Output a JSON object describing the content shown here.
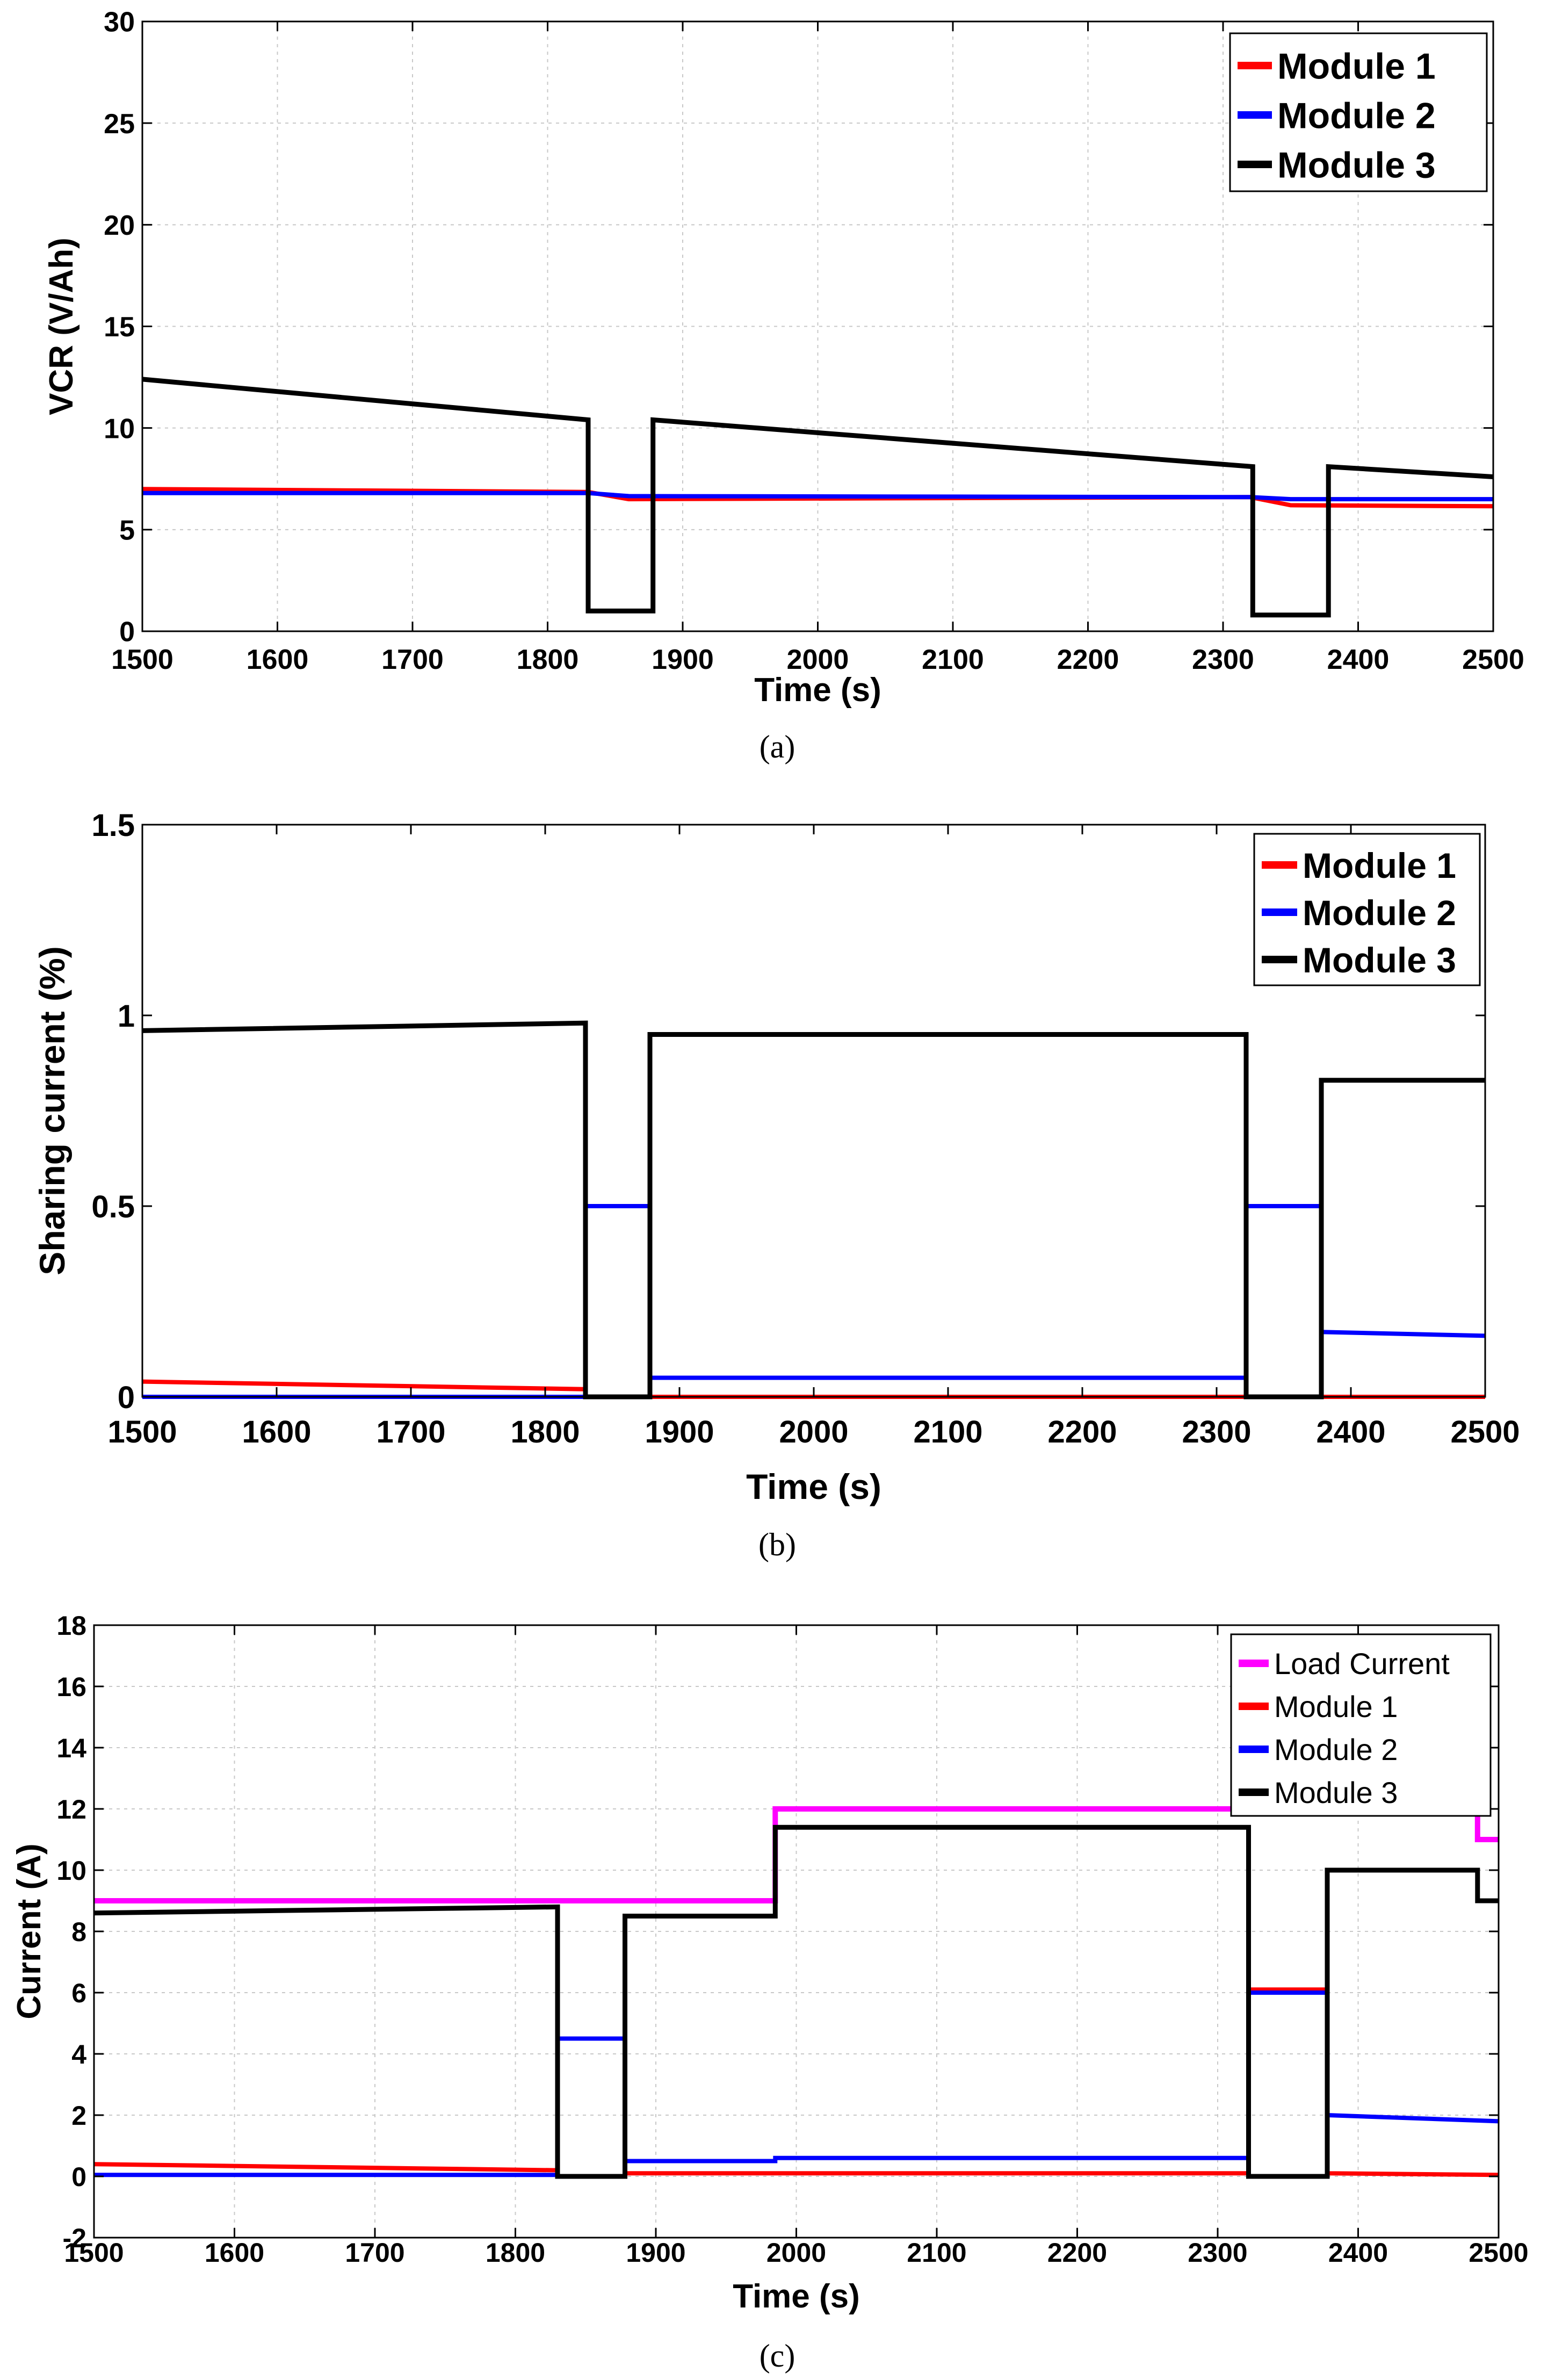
{
  "chart_data": [
    {
      "id": "a",
      "type": "line",
      "caption": "(a)",
      "xlabel": "Time (s)",
      "ylabel": "VCR (V/Ah)",
      "xlim": [
        1500,
        2500
      ],
      "ylim": [
        0,
        30
      ],
      "xticks": [
        1500,
        1600,
        1700,
        1800,
        1900,
        2000,
        2100,
        2200,
        2300,
        2400,
        2500
      ],
      "yticks": [
        0,
        5,
        10,
        15,
        20,
        25,
        30
      ],
      "grid": true,
      "legend_position": "top-right",
      "series": [
        {
          "name": "Module 1",
          "color": "#ff0000",
          "points": [
            [
              1500,
              7.0
            ],
            [
              1830,
              6.85
            ],
            [
              1860,
              6.5
            ],
            [
              2320,
              6.6
            ],
            [
              2350,
              6.2
            ],
            [
              2500,
              6.15
            ]
          ]
        },
        {
          "name": "Module 2",
          "color": "#0000ff",
          "points": [
            [
              1500,
              6.8
            ],
            [
              1830,
              6.8
            ],
            [
              1860,
              6.65
            ],
            [
              2320,
              6.6
            ],
            [
              2350,
              6.5
            ],
            [
              2500,
              6.5
            ]
          ]
        },
        {
          "name": "Module 3",
          "color": "#000000",
          "points": [
            [
              1500,
              12.4
            ],
            [
              1830,
              10.4
            ],
            [
              1830,
              1.0
            ],
            [
              1878,
              1.0
            ],
            [
              1878,
              10.4
            ],
            [
              2322,
              8.1
            ],
            [
              2322,
              0.8
            ],
            [
              2378,
              0.8
            ],
            [
              2378,
              8.1
            ],
            [
              2500,
              7.6
            ]
          ]
        }
      ]
    },
    {
      "id": "b",
      "type": "line",
      "caption": "(b)",
      "xlabel": "Time (s)",
      "ylabel": "Sharing current (%)",
      "xlim": [
        1500,
        2500
      ],
      "ylim": [
        0,
        1.5
      ],
      "xticks": [
        1500,
        1600,
        1700,
        1800,
        1900,
        2000,
        2100,
        2200,
        2300,
        2400,
        2500
      ],
      "yticks": [
        0,
        0.5,
        1,
        1.5
      ],
      "grid": false,
      "legend_position": "top-right",
      "series": [
        {
          "name": "Module 1",
          "color": "#ff0000",
          "points": [
            [
              1500,
              0.04
            ],
            [
              1830,
              0.02
            ],
            [
              1830,
              0.5
            ],
            [
              1878,
              0.5
            ],
            [
              1878,
              0.0
            ],
            [
              2500,
              0.0
            ]
          ]
        },
        {
          "name": "Module 2",
          "color": "#0000ff",
          "points": [
            [
              1500,
              0.0
            ],
            [
              1830,
              0.0
            ],
            [
              1830,
              0.5
            ],
            [
              1878,
              0.5
            ],
            [
              1878,
              0.05
            ],
            [
              2322,
              0.05
            ],
            [
              2322,
              0.5
            ],
            [
              2378,
              0.5
            ],
            [
              2378,
              0.17
            ],
            [
              2500,
              0.16
            ]
          ]
        },
        {
          "name": "Module 3",
          "color": "#000000",
          "points": [
            [
              1500,
              0.96
            ],
            [
              1830,
              0.98
            ],
            [
              1830,
              0.0
            ],
            [
              1878,
              0.0
            ],
            [
              1878,
              0.95
            ],
            [
              2322,
              0.95
            ],
            [
              2322,
              0.0
            ],
            [
              2378,
              0.0
            ],
            [
              2378,
              0.83
            ],
            [
              2500,
              0.83
            ]
          ]
        }
      ]
    },
    {
      "id": "c",
      "type": "line",
      "caption": "(c)",
      "xlabel": "Time (s)",
      "ylabel": "Current (A)",
      "xlim": [
        1500,
        2500
      ],
      "ylim": [
        -2,
        18
      ],
      "xticks": [
        1500,
        1600,
        1700,
        1800,
        1900,
        2000,
        2100,
        2200,
        2300,
        2400,
        2500
      ],
      "yticks": [
        -2,
        0,
        2,
        4,
        6,
        8,
        10,
        12,
        14,
        16,
        18
      ],
      "grid": true,
      "legend_position": "top-right",
      "series": [
        {
          "name": "Load Current",
          "color": "#ff00ff",
          "points": [
            [
              1500,
              9.0
            ],
            [
              1985,
              9.0
            ],
            [
              1985,
              12.0
            ],
            [
              2485,
              12.0
            ],
            [
              2485,
              11.0
            ],
            [
              2500,
              11.0
            ]
          ]
        },
        {
          "name": "Module 1",
          "color": "#ff0000",
          "points": [
            [
              1500,
              0.4
            ],
            [
              1830,
              0.2
            ],
            [
              1830,
              4.5
            ],
            [
              1878,
              4.5
            ],
            [
              1878,
              0.1
            ],
            [
              2322,
              0.1
            ],
            [
              2322,
              6.1
            ],
            [
              2378,
              6.1
            ],
            [
              2378,
              0.1
            ],
            [
              2500,
              0.05
            ]
          ]
        },
        {
          "name": "Module 2",
          "color": "#0000ff",
          "points": [
            [
              1500,
              0.05
            ],
            [
              1830,
              0.05
            ],
            [
              1830,
              4.5
            ],
            [
              1878,
              4.5
            ],
            [
              1878,
              0.5
            ],
            [
              1985,
              0.5
            ],
            [
              1985,
              0.6
            ],
            [
              2322,
              0.6
            ],
            [
              2322,
              6.0
            ],
            [
              2378,
              6.0
            ],
            [
              2378,
              2.0
            ],
            [
              2500,
              1.8
            ]
          ]
        },
        {
          "name": "Module 3",
          "color": "#000000",
          "points": [
            [
              1500,
              8.6
            ],
            [
              1830,
              8.8
            ],
            [
              1830,
              0.0
            ],
            [
              1878,
              0.0
            ],
            [
              1878,
              8.5
            ],
            [
              1985,
              8.5
            ],
            [
              1985,
              11.4
            ],
            [
              2322,
              11.4
            ],
            [
              2322,
              0.0
            ],
            [
              2378,
              0.0
            ],
            [
              2378,
              10.0
            ],
            [
              2485,
              10.0
            ],
            [
              2485,
              9.0
            ],
            [
              2500,
              9.0
            ]
          ]
        }
      ]
    }
  ]
}
